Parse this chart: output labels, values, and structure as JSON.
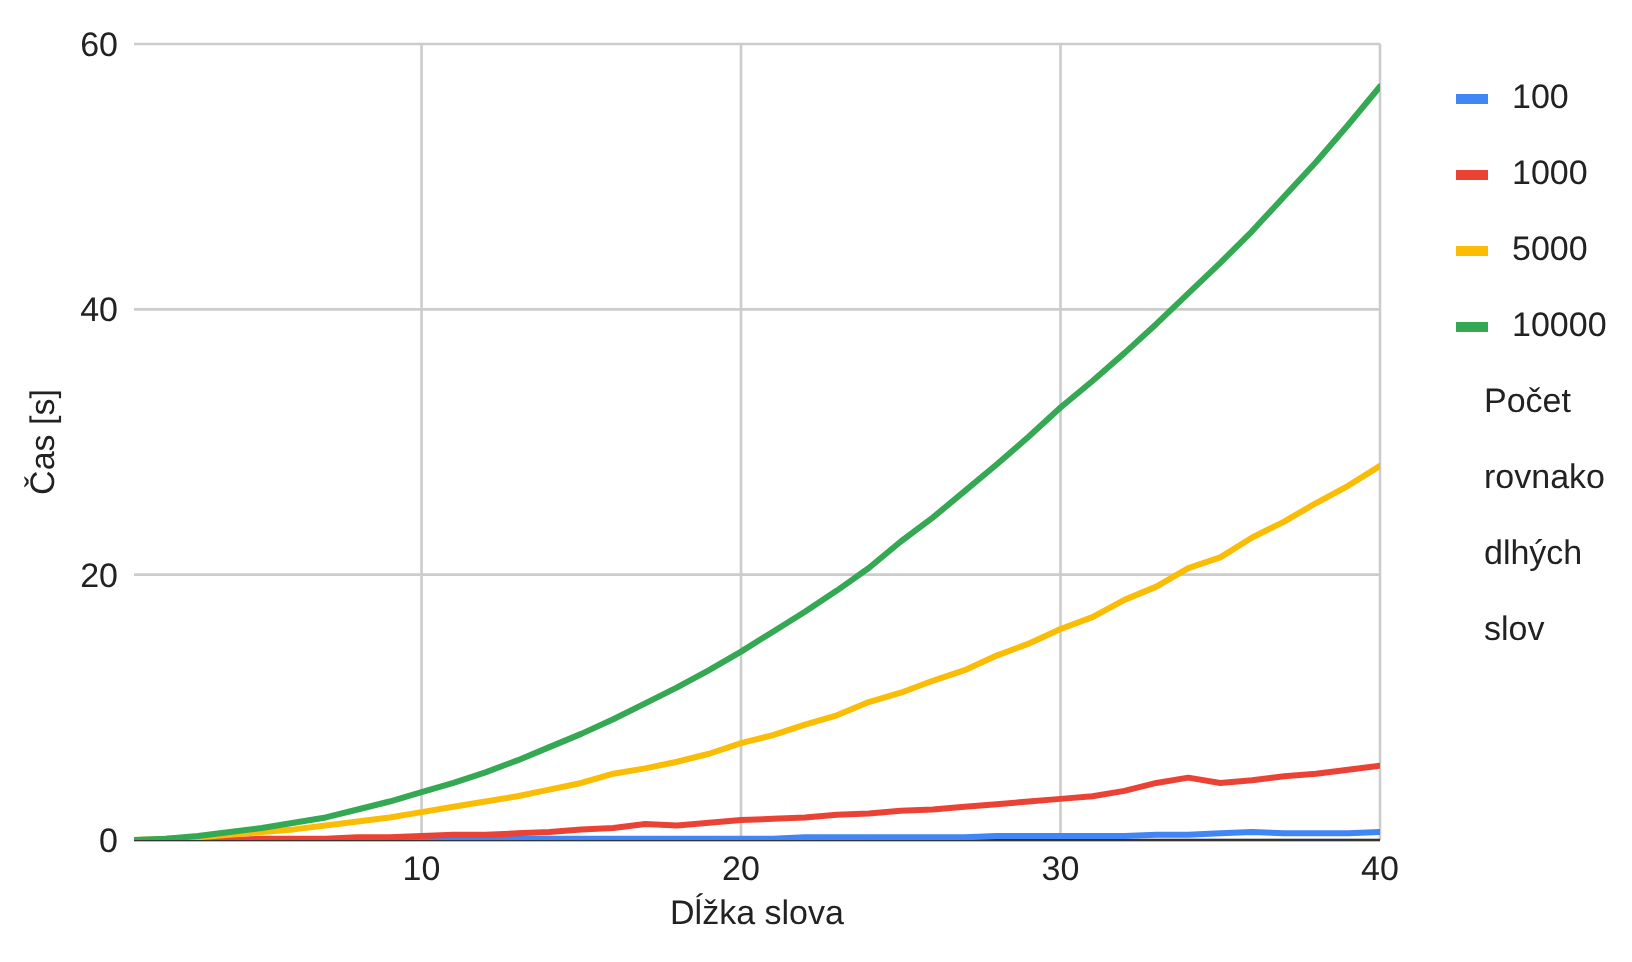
{
  "chart_data": {
    "type": "line",
    "xlabel": "Dĺžka slova",
    "ylabel": "Čas [s]",
    "legend_title": "Počet rovnako dlhých slov",
    "legend": "right",
    "grid": true,
    "marker": "none",
    "line_style": "solid",
    "x": [
      1,
      2,
      3,
      4,
      5,
      6,
      7,
      8,
      9,
      10,
      11,
      12,
      13,
      14,
      15,
      16,
      17,
      18,
      19,
      20,
      21,
      22,
      23,
      24,
      25,
      26,
      27,
      28,
      29,
      30,
      31,
      32,
      33,
      34,
      35,
      36,
      37,
      38,
      39,
      40
    ],
    "xlim": [
      1,
      40
    ],
    "xticks": [
      10,
      20,
      30,
      40
    ],
    "ylim": [
      0,
      60
    ],
    "yticks": [
      0,
      20,
      40,
      60
    ],
    "series": [
      {
        "name": "100",
        "color": "#4285f4",
        "values": [
          null,
          null,
          null,
          null,
          null,
          null,
          null,
          null,
          0,
          0,
          0.1,
          0.1,
          0.1,
          0.1,
          0.1,
          0.1,
          0.1,
          0.1,
          0.1,
          0.1,
          0.1,
          0.2,
          0.2,
          0.2,
          0.2,
          0.2,
          0.2,
          0.3,
          0.3,
          0.3,
          0.3,
          0.3,
          0.4,
          0.4,
          0.5,
          0.6,
          0.5,
          0.5,
          0.5,
          0.6
        ]
      },
      {
        "name": "1000",
        "color": "#ea4335",
        "values": [
          0,
          0,
          0,
          0,
          0.1,
          0.1,
          0.1,
          0.2,
          0.2,
          0.3,
          0.4,
          0.4,
          0.5,
          0.6,
          0.8,
          0.9,
          1.2,
          1.1,
          1.3,
          1.5,
          1.6,
          1.7,
          1.9,
          2,
          2.2,
          2.3,
          2.5,
          2.7,
          2.9,
          3.1,
          3.3,
          3.7,
          4.3,
          4.7,
          4.3,
          4.5,
          4.8,
          5,
          5.3,
          5.6
        ]
      },
      {
        "name": "5000",
        "color": "#fbbc04",
        "values": [
          0,
          0.1,
          0.2,
          0.4,
          0.6,
          0.8,
          1.1,
          1.4,
          1.7,
          2.1,
          2.5,
          2.9,
          3.3,
          3.8,
          4.3,
          5,
          5.4,
          5.9,
          6.5,
          7.3,
          7.9,
          8.7,
          9.4,
          10.4,
          11.1,
          12,
          12.8,
          13.9,
          14.8,
          15.9,
          16.8,
          18.1,
          19.1,
          20.5,
          21.3,
          22.8,
          24,
          25.4,
          26.7,
          28.2
        ]
      },
      {
        "name": "10000",
        "color": "#34a853",
        "values": [
          0,
          0.1,
          0.3,
          0.6,
          0.9,
          1.3,
          1.7,
          2.3,
          2.9,
          3.6,
          4.3,
          5.1,
          6,
          7,
          8,
          9.1,
          10.3,
          11.5,
          12.8,
          14.2,
          15.7,
          17.2,
          18.8,
          20.5,
          22.5,
          24.3,
          26.3,
          28.3,
          30.4,
          32.6,
          34.6,
          36.7,
          38.9,
          41.2,
          43.5,
          45.9,
          48.5,
          51.1,
          53.9,
          56.8
        ]
      }
    ]
  }
}
